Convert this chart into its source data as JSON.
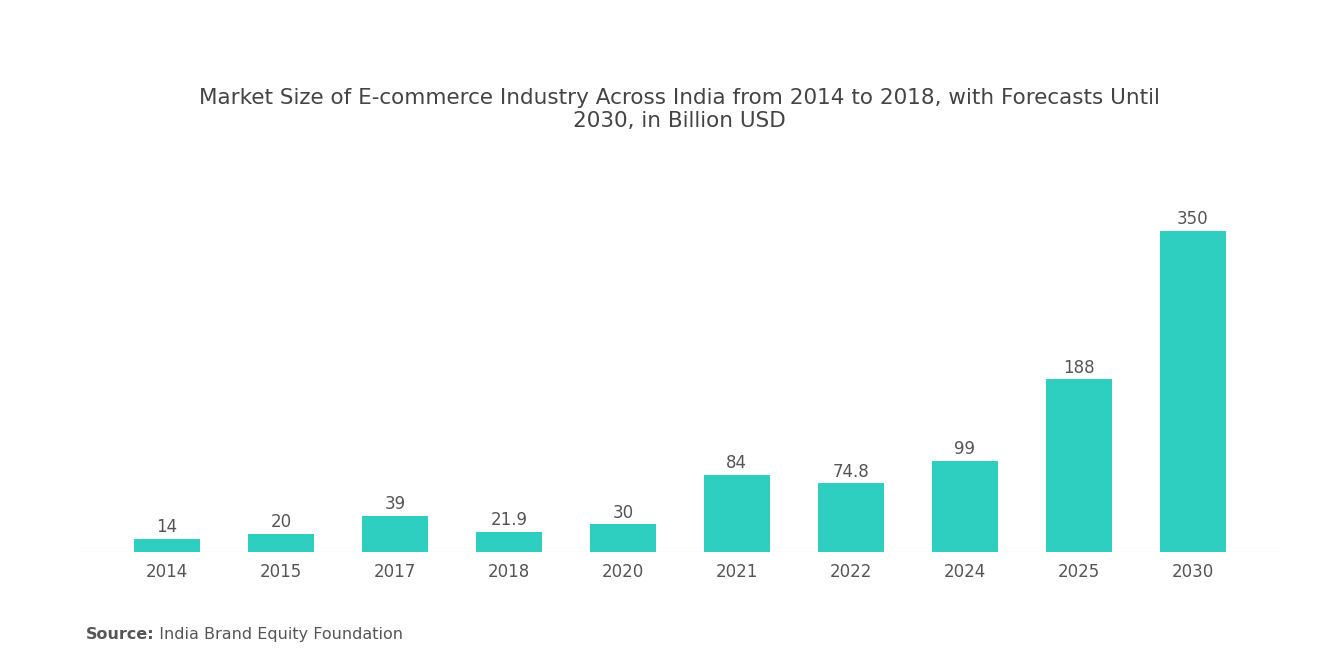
{
  "title": "Market Size of E-commerce Industry Across India from 2014 to 2018, with Forecasts Until\n2030, in Billion USD",
  "categories": [
    "2014",
    "2015",
    "2017",
    "2018",
    "2020",
    "2021",
    "2022",
    "2024",
    "2025",
    "2030"
  ],
  "values": [
    14,
    20,
    39,
    21.9,
    30,
    84,
    74.8,
    99,
    188,
    350
  ],
  "bar_color": "#2ECFC0",
  "label_color": "#555555",
  "title_color": "#444444",
  "background_color": "#FFFFFF",
  "source_bold": "Source:",
  "source_rest": "  India Brand Equity Foundation",
  "ylim": [
    0,
    420
  ],
  "title_fontsize": 15.5,
  "label_fontsize": 12,
  "tick_fontsize": 12,
  "source_fontsize": 11.5,
  "bar_width": 0.58
}
